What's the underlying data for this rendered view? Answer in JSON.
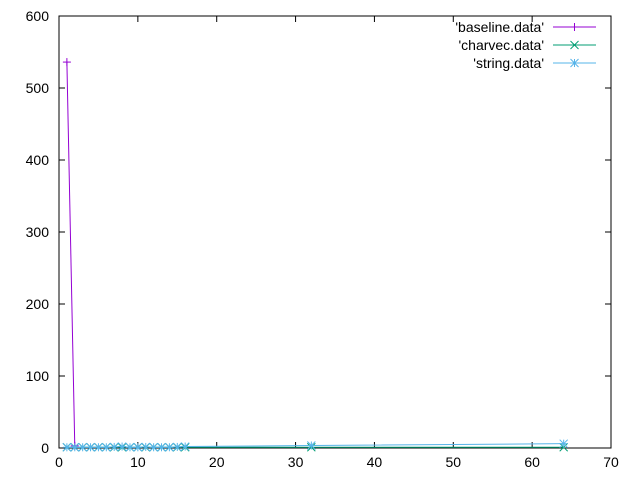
{
  "chart_data": {
    "type": "line",
    "title": "",
    "xlabel": "",
    "ylabel": "",
    "xlim": [
      0,
      70
    ],
    "ylim": [
      0,
      600
    ],
    "x_ticks": [
      0,
      10,
      20,
      30,
      40,
      50,
      60,
      70
    ],
    "y_ticks": [
      0,
      100,
      200,
      300,
      400,
      500,
      600
    ],
    "grid": false,
    "legend_position": "top-right",
    "series": [
      {
        "name": "'baseline.data'",
        "color": "#9400d3",
        "marker": "plus",
        "x": [
          1,
          2
        ],
        "y": [
          536,
          3
        ]
      },
      {
        "name": "'charvec.data'",
        "color": "#009e73",
        "marker": "cross",
        "x": [
          1,
          2,
          3,
          4,
          5,
          6,
          7,
          8,
          9,
          10,
          11,
          12,
          13,
          14,
          15,
          16,
          32,
          64
        ],
        "y": [
          1,
          1,
          1,
          1,
          1,
          1,
          1,
          1,
          1,
          1,
          1,
          1,
          1,
          1,
          1,
          1,
          1,
          1
        ]
      },
      {
        "name": "'string.data'",
        "color": "#56b4e9",
        "marker": "star",
        "x": [
          1,
          2,
          3,
          4,
          5,
          6,
          7,
          8,
          9,
          10,
          11,
          12,
          13,
          14,
          15,
          16,
          32,
          64
        ],
        "y": [
          1,
          1,
          1,
          1,
          1,
          1,
          1.5,
          2,
          1,
          1,
          1.5,
          1,
          1,
          1,
          1.5,
          2,
          3.5,
          6
        ]
      }
    ]
  }
}
